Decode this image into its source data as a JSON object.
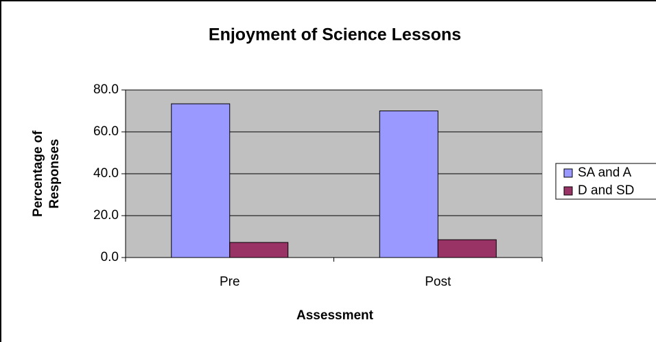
{
  "chart_data": {
    "type": "bar",
    "title": "Enjoyment of Science Lessons",
    "categories": [
      "Pre",
      "Post"
    ],
    "series": [
      {
        "name": "SA and A",
        "color": "#9999ff",
        "values": [
          73.4,
          70.0
        ]
      },
      {
        "name": "D and SD",
        "color": "#993366",
        "values": [
          7.2,
          8.5
        ]
      }
    ],
    "xlabel": "Assessment",
    "ylabel": [
      "Percentage of",
      "Responses"
    ],
    "ylim": [
      0,
      80
    ],
    "yticks": [
      {
        "value": 0,
        "label": "0.0"
      },
      {
        "value": 20,
        "label": "20.0"
      },
      {
        "value": 40,
        "label": "40.0"
      },
      {
        "value": 60,
        "label": "60.0"
      },
      {
        "value": 80,
        "label": "80.0"
      }
    ],
    "grid": true,
    "legend": "right"
  }
}
